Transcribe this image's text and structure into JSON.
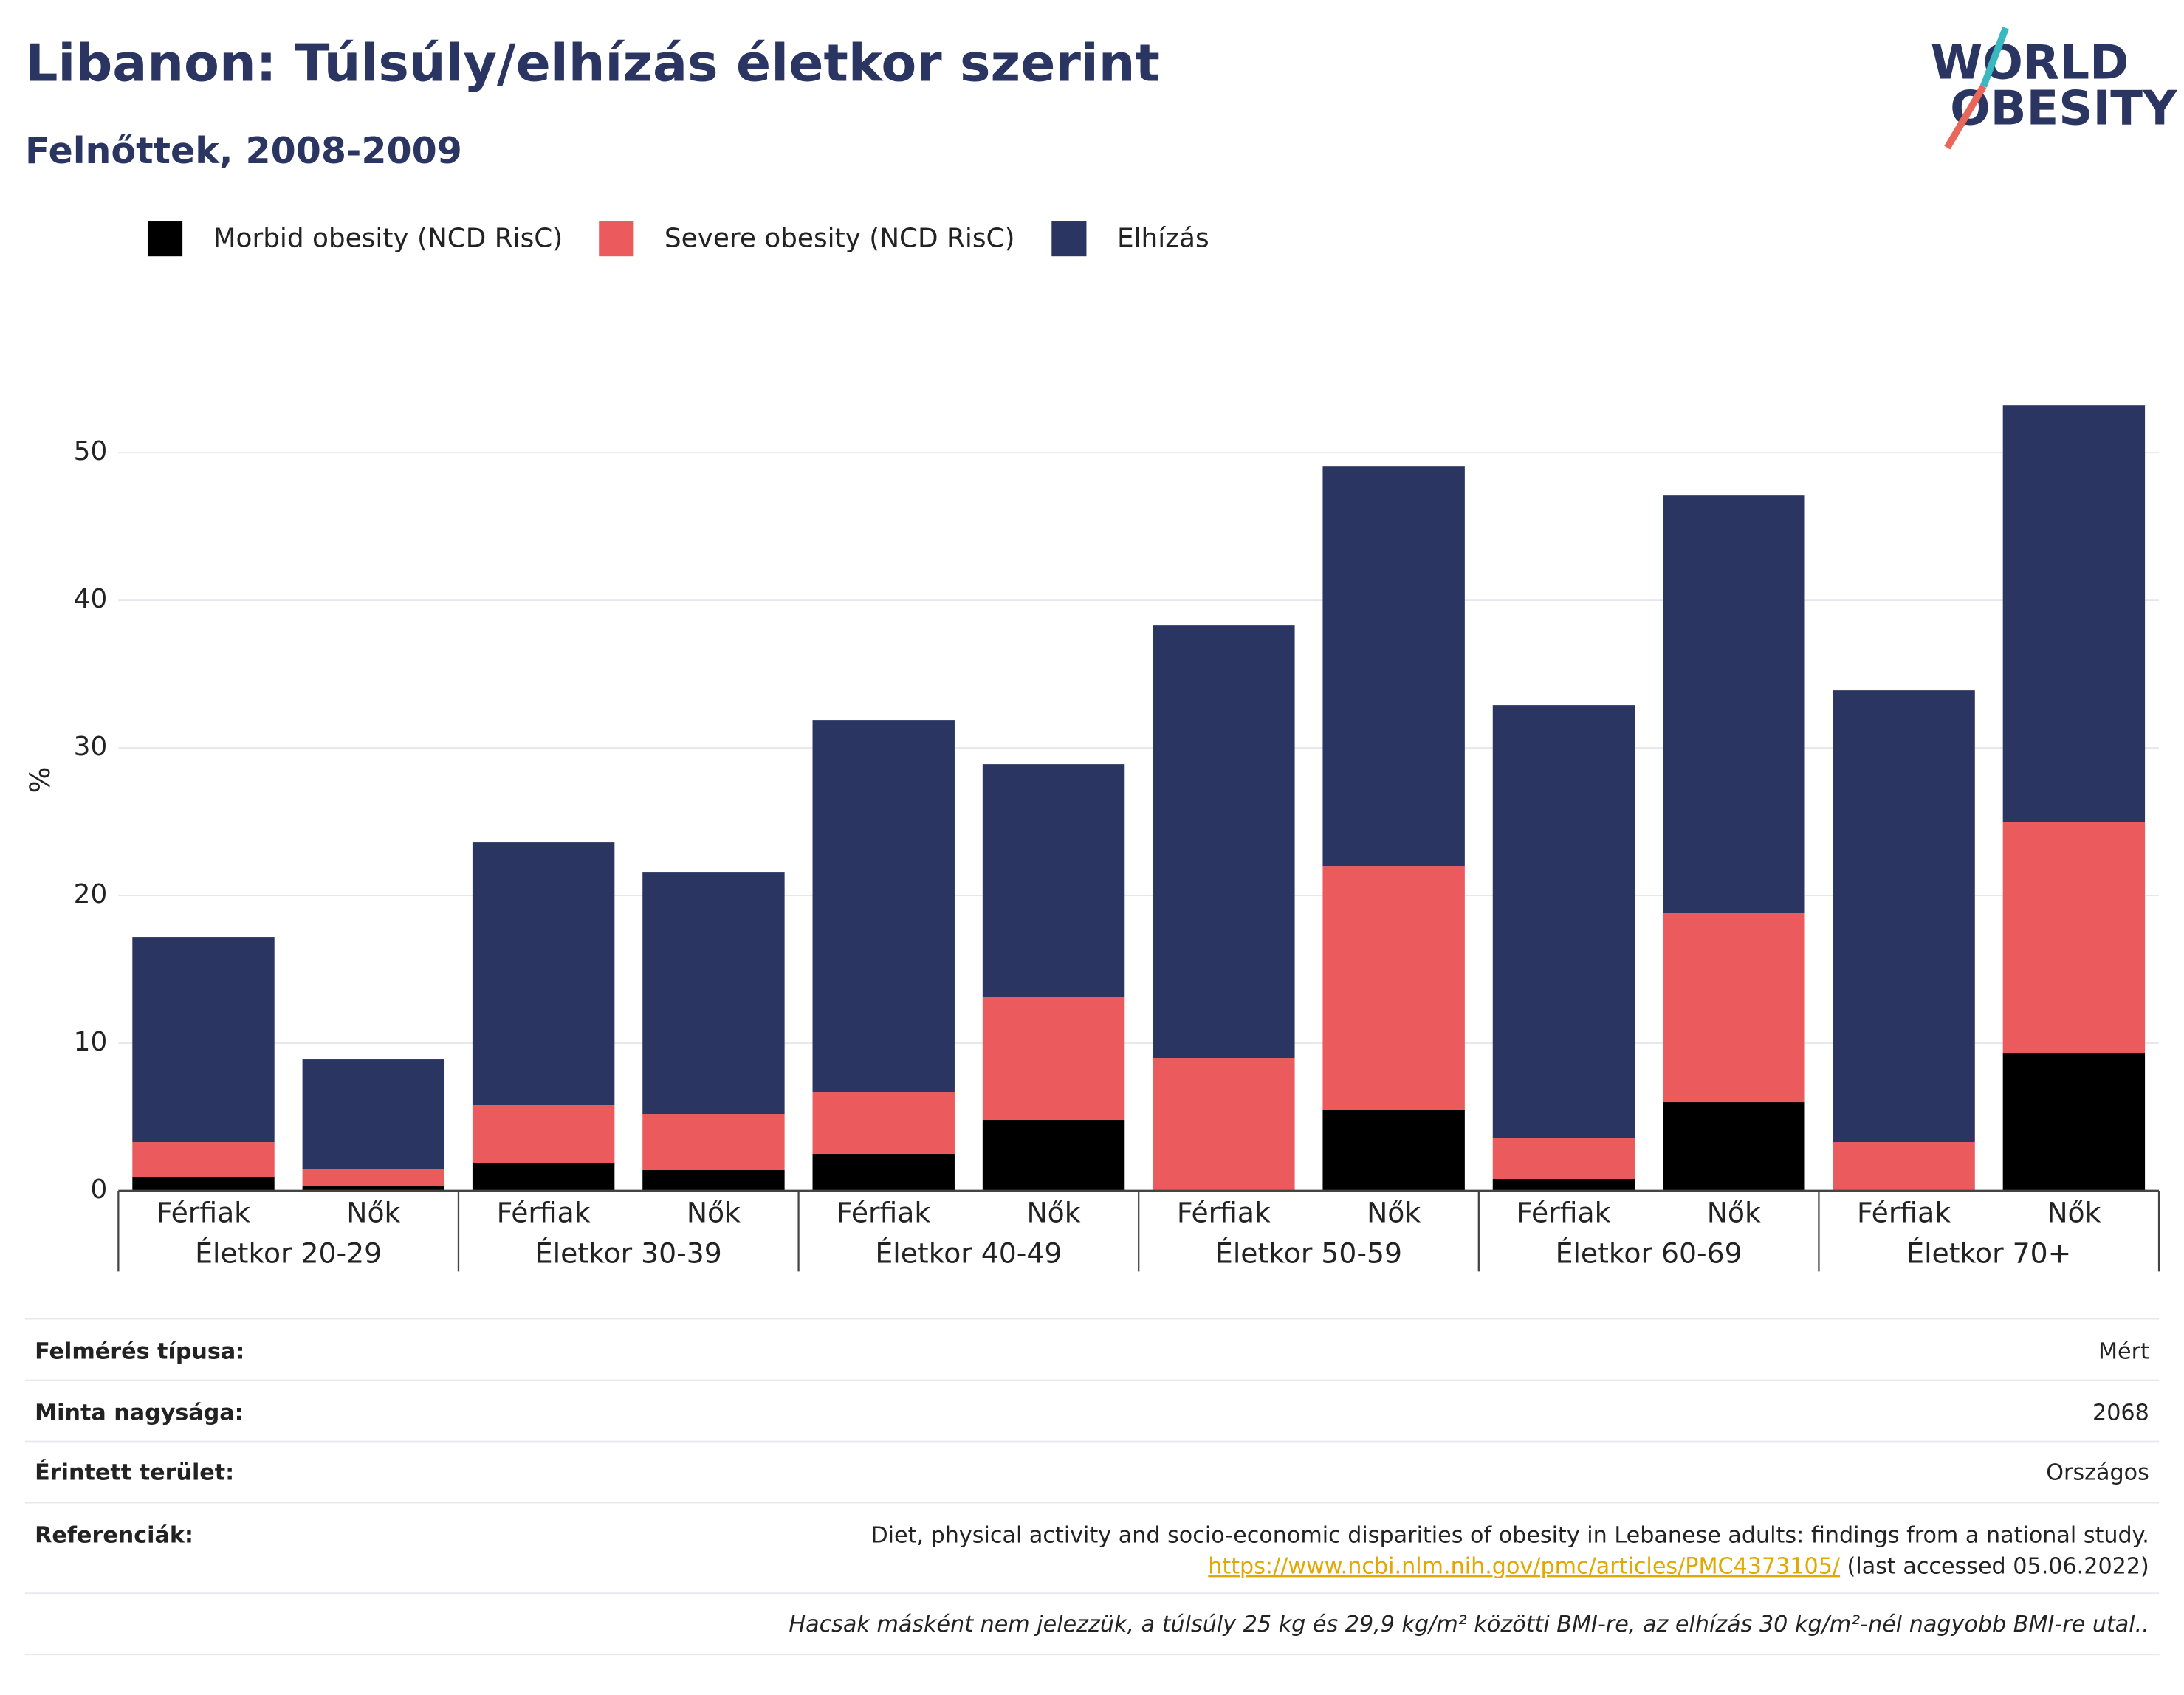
{
  "logo": [
    "WORLD",
    "OBESITY"
  ],
  "chart_data": {
    "type": "stacked-bar",
    "title": "Libanon: Túlsúly/elhízás életkor szerint",
    "subtitle": "Felnőttek, 2008-2009",
    "ylabel": "%",
    "categories": [
      "Férfiak",
      "Nők",
      "Férfiak",
      "Nők",
      "Férfiak",
      "Nők",
      "Férfiak",
      "Nők",
      "Férfiak",
      "Nők",
      "Férfiak",
      "Nők"
    ],
    "groups": [
      "Életkor 20-29",
      "Életkor 30-39",
      "Életkor 40-49",
      "Életkor 50-59",
      "Életkor 60-69",
      "Életkor 70+"
    ],
    "series": [
      {
        "name": "Morbid obesity (NCD RisC)",
        "color": "#000000",
        "values": [
          0.9,
          0.3,
          1.9,
          1.4,
          2.5,
          4.8,
          null,
          5.5,
          0.8,
          6.0,
          null,
          9.3
        ]
      },
      {
        "name": "Severe obesity (NCD RisC)",
        "color": "#eb5a5c",
        "values": [
          2.4,
          1.2,
          3.9,
          3.8,
          4.2,
          8.3,
          9.0,
          16.5,
          2.8,
          12.8,
          3.3,
          15.7
        ]
      },
      {
        "name": "Elhízás",
        "color": "#2b3562",
        "values": [
          13.9,
          7.4,
          17.8,
          16.4,
          25.2,
          15.8,
          29.3,
          27.1,
          29.3,
          28.3,
          30.6,
          28.2
        ]
      }
    ],
    "ylim": [
      0,
      55
    ],
    "yticks": [
      0,
      10,
      20,
      30,
      40,
      50
    ],
    "grid": true
  },
  "info": {
    "rows": [
      {
        "label": "Felmérés típusa:",
        "value": "Mért"
      },
      {
        "label": "Minta nagysága:",
        "value": "2068"
      },
      {
        "label": "Érintett terület:",
        "value": "Országos"
      },
      {
        "label": "Referenciák:",
        "value": "Diet, physical activity and socio-economic disparities of obesity in Lebanese adults: findings from a national study.",
        "link": "https://www.ncbi.nlm.nih.gov/pmc/articles/PMC4373105/",
        "note": "(last accessed 05.06.2022)"
      }
    ],
    "footnote": "Hacsak másként nem jelezzük, a túlsúly 25 kg és 29,9 kg/m² közötti BMI-re, az elhízás 30 kg/m²-nél nagyobb BMI-re utal.."
  }
}
